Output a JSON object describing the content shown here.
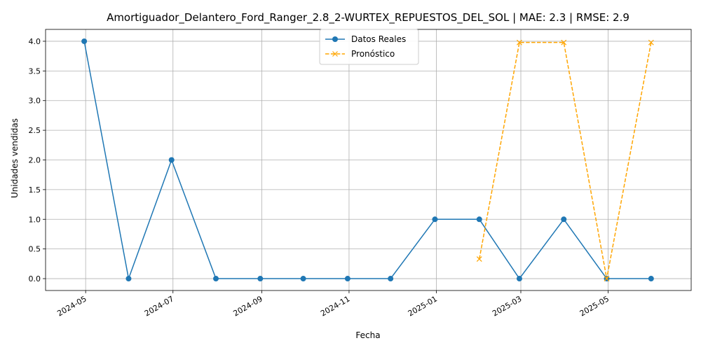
{
  "chart_data": {
    "type": "line",
    "title": "Amortiguador_Delantero_Ford_Ranger_2.8_2-WURTEX_REPUESTOS_DEL_SOL | MAE: 2.3 | RMSE: 2.9",
    "xlabel": "Fecha",
    "ylabel": "Unidades vendidas",
    "ylim": [
      -0.2,
      4.2
    ],
    "xlim": [
      "2024-04-03",
      "2025-06-28"
    ],
    "grid": true,
    "legend_position": "upper-center",
    "x_ticks": [
      "2024-05",
      "2024-07",
      "2024-09",
      "2024-11",
      "2025-01",
      "2025-03",
      "2025-05"
    ],
    "y_ticks": [
      "0.0",
      "0.5",
      "1.0",
      "1.5",
      "2.0",
      "2.5",
      "3.0",
      "3.5",
      "4.0"
    ],
    "series": [
      {
        "name": "Datos Reales",
        "color": "#1f77b4",
        "style": "solid",
        "marker": "circle",
        "x": [
          "2024-04-30",
          "2024-05-31",
          "2024-06-30",
          "2024-07-31",
          "2024-08-31",
          "2024-09-30",
          "2024-10-31",
          "2024-11-30",
          "2024-12-31",
          "2025-01-31",
          "2025-02-28",
          "2025-03-31",
          "2025-04-30",
          "2025-05-31"
        ],
        "values": [
          4,
          0,
          2,
          0,
          0,
          0,
          0,
          0,
          1,
          1,
          0,
          1,
          0,
          0
        ]
      },
      {
        "name": "Pronóstico",
        "color": "#ffa500",
        "style": "dashed",
        "marker": "x",
        "x": [
          "2025-01-31",
          "2025-02-28",
          "2025-03-31",
          "2025-04-30",
          "2025-05-31"
        ],
        "values": [
          0.33,
          3.98,
          3.98,
          0.0,
          3.98
        ]
      }
    ]
  }
}
